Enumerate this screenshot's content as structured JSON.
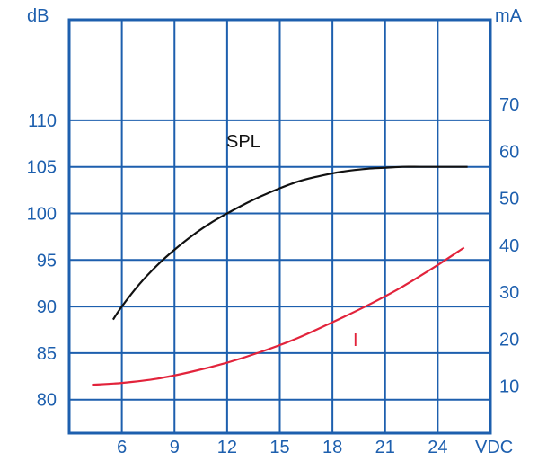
{
  "colors": {
    "axis": "#1d5fae",
    "spl": "#111111",
    "current": "#e2233b",
    "background": "#ffffff"
  },
  "chart_data": {
    "type": "line",
    "x_unit": "VDC",
    "x_ticks": [
      "6",
      "9",
      "12",
      "15",
      "18",
      "21",
      "24"
    ],
    "xlim": [
      3,
      27
    ],
    "left_axis": {
      "unit": "dB",
      "ticks": [
        "80",
        "85",
        "90",
        "95",
        "100",
        "105",
        "110"
      ],
      "ylim": [
        76.4,
        120.8
      ]
    },
    "right_axis": {
      "unit": "mA",
      "ticks": [
        "10",
        "20",
        "30",
        "40",
        "50",
        "60",
        "70"
      ],
      "ylim": [
        0,
        88
      ]
    },
    "grid": true,
    "series": [
      {
        "name": "SPL",
        "axis": "left",
        "color": "#111111",
        "x": [
          5.5,
          6,
          7,
          8,
          9,
          10,
          11,
          12,
          13,
          14,
          15,
          16,
          17,
          18,
          19,
          20,
          21,
          22,
          23,
          24,
          25,
          25.7
        ],
        "y": [
          88.6,
          90,
          92.4,
          94.4,
          96.1,
          97.6,
          98.9,
          100,
          101,
          101.9,
          102.7,
          103.4,
          103.9,
          104.3,
          104.6,
          104.8,
          104.9,
          105,
          105,
          105,
          105,
          105
        ]
      },
      {
        "name": "I",
        "axis": "right",
        "color": "#e2233b",
        "x": [
          4.3,
          6,
          8,
          10,
          12,
          14,
          16,
          18,
          20,
          22,
          24,
          25.5
        ],
        "y": [
          10.3,
          10.7,
          11.6,
          13.1,
          15,
          17.4,
          20.2,
          23.6,
          27.2,
          31.2,
          35.8,
          39.5
        ]
      }
    ]
  }
}
